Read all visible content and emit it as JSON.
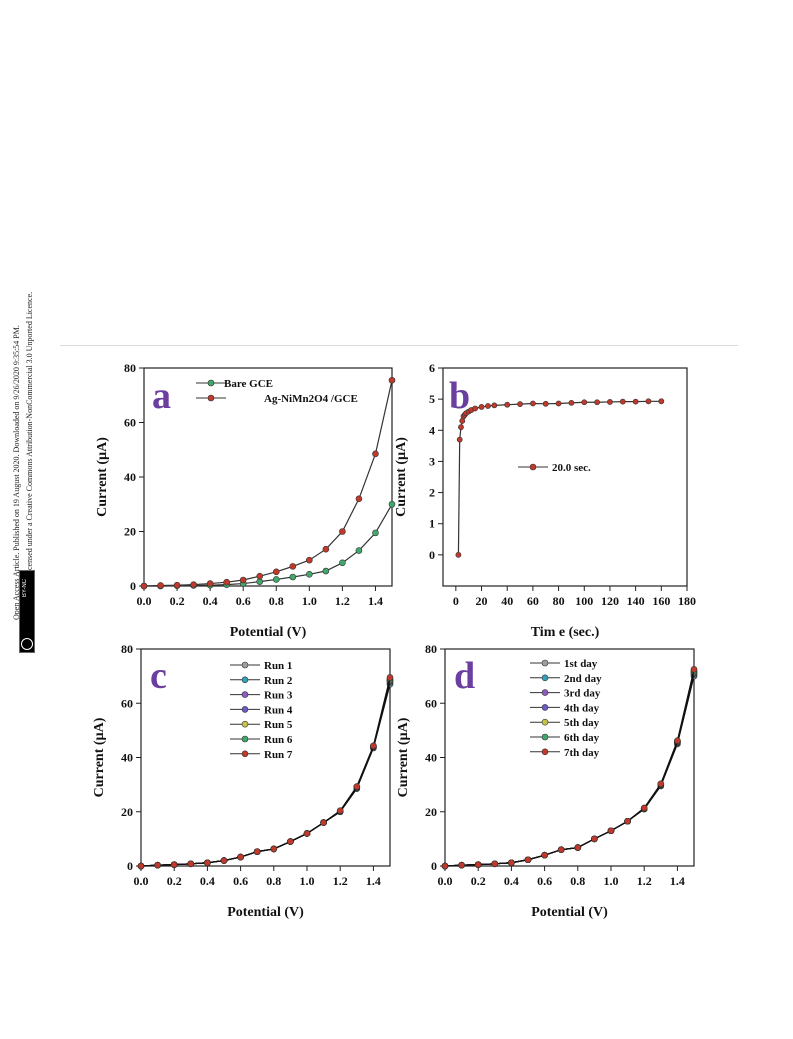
{
  "sidebar": {
    "line1": "Open Access Article. Published on 19 August 2020. Downloaded on 9/26/2020 9:35:54 PM.",
    "line2": "This article is licensed under a Creative Commons Attribution-NonCommercial 3.0 Unported Licence.",
    "badge": "BY-NC"
  },
  "chart_data": [
    {
      "type": "line",
      "panel": "a",
      "xlabel": "Potential (V)",
      "ylabel": "Current (µA)",
      "xlim": [
        0,
        1.5
      ],
      "ylim": [
        0,
        80
      ],
      "xticks": [
        0.0,
        0.2,
        0.4,
        0.6,
        0.8,
        1.0,
        1.2,
        1.4
      ],
      "yticks": [
        0,
        20,
        40,
        60,
        80
      ],
      "legend_position": "top-left",
      "series": [
        {
          "name": "Bare GCE",
          "color": "#3fa86a",
          "x": [
            0.0,
            0.1,
            0.2,
            0.3,
            0.4,
            0.5,
            0.6,
            0.7,
            0.8,
            0.9,
            1.0,
            1.1,
            1.2,
            1.3,
            1.4,
            1.5
          ],
          "y": [
            0,
            0,
            0.1,
            0.2,
            0.3,
            0.5,
            0.9,
            1.6,
            2.4,
            3.3,
            4.3,
            5.5,
            8.5,
            13.0,
            19.5,
            30.0
          ]
        },
        {
          "name": "Ag-NiMn2O4 /GCE",
          "color": "#c0392b",
          "x": [
            0.0,
            0.1,
            0.2,
            0.3,
            0.4,
            0.5,
            0.6,
            0.7,
            0.8,
            0.9,
            1.0,
            1.1,
            1.2,
            1.3,
            1.4,
            1.5
          ],
          "y": [
            0,
            0.2,
            0.3,
            0.5,
            0.9,
            1.4,
            2.2,
            3.6,
            5.2,
            7.2,
            9.5,
            13.5,
            20.0,
            32.0,
            48.5,
            75.5
          ]
        }
      ]
    },
    {
      "type": "line",
      "panel": "b",
      "xlabel": "Tim e (sec.)",
      "ylabel": "Current (µA)",
      "xlim": [
        -10,
        180
      ],
      "ylim": [
        -1,
        6
      ],
      "xticks": [
        0,
        20,
        40,
        60,
        80,
        100,
        120,
        140,
        160,
        180
      ],
      "yticks": [
        0,
        1,
        2,
        3,
        4,
        5,
        6
      ],
      "legend_position": "center",
      "series": [
        {
          "name": "20.0 sec.",
          "color": "#c0392b",
          "x": [
            2,
            3,
            4,
            5,
            6,
            7,
            8,
            10,
            12,
            15,
            20,
            25,
            30,
            40,
            50,
            60,
            70,
            80,
            90,
            100,
            110,
            120,
            130,
            140,
            150,
            160
          ],
          "y": [
            0.0,
            3.7,
            4.1,
            4.3,
            4.45,
            4.5,
            4.55,
            4.6,
            4.65,
            4.7,
            4.75,
            4.78,
            4.8,
            4.82,
            4.84,
            4.86,
            4.85,
            4.86,
            4.88,
            4.9,
            4.9,
            4.91,
            4.92,
            4.92,
            4.93,
            4.93
          ]
        }
      ]
    },
    {
      "type": "line",
      "panel": "c",
      "xlabel": "Potential (V)",
      "ylabel": "Current (µA)",
      "xlim": [
        0,
        1.5
      ],
      "ylim": [
        0,
        80
      ],
      "xticks": [
        0.0,
        0.2,
        0.4,
        0.6,
        0.8,
        1.0,
        1.2,
        1.4
      ],
      "yticks": [
        0,
        20,
        40,
        60,
        80
      ],
      "legend_position": "top-center",
      "x": [
        0.0,
        0.1,
        0.2,
        0.3,
        0.4,
        0.5,
        0.6,
        0.7,
        0.8,
        0.9,
        1.0,
        1.1,
        1.2,
        1.3,
        1.4,
        1.5
      ],
      "series": [
        {
          "name": "Run 1",
          "color": "#9e9e9e",
          "y": [
            0,
            0.3,
            0.5,
            0.8,
            1.2,
            2.0,
            3.3,
            5.3,
            6.3,
            9.0,
            12.0,
            16.0,
            20.0,
            28.5,
            43.5,
            67.0
          ]
        },
        {
          "name": "Run 2",
          "color": "#33a1b5",
          "y": [
            0,
            0.3,
            0.5,
            0.8,
            1.2,
            2.0,
            3.3,
            5.3,
            6.3,
            9.0,
            12.0,
            16.0,
            20.0,
            28.7,
            43.7,
            67.5
          ]
        },
        {
          "name": "Run 3",
          "color": "#8e5cc4",
          "y": [
            0,
            0.3,
            0.5,
            0.8,
            1.2,
            2.0,
            3.3,
            5.3,
            6.3,
            9.0,
            12.0,
            16.0,
            20.2,
            28.9,
            43.9,
            68.0
          ]
        },
        {
          "name": "Run 4",
          "color": "#6a5acd",
          "y": [
            0,
            0.3,
            0.5,
            0.8,
            1.2,
            2.0,
            3.3,
            5.3,
            6.3,
            9.0,
            12.0,
            16.0,
            20.2,
            29.0,
            44.0,
            68.3
          ]
        },
        {
          "name": "Run 5",
          "color": "#c9c24a",
          "y": [
            0,
            0.3,
            0.5,
            0.8,
            1.2,
            2.0,
            3.3,
            5.3,
            6.3,
            9.0,
            12.0,
            16.0,
            20.3,
            29.1,
            44.1,
            68.6
          ]
        },
        {
          "name": "Run 6",
          "color": "#3fa86a",
          "y": [
            0,
            0.3,
            0.5,
            0.8,
            1.2,
            2.0,
            3.3,
            5.3,
            6.3,
            9.0,
            12.0,
            16.0,
            20.3,
            29.2,
            44.2,
            69.0
          ]
        },
        {
          "name": "Run 7",
          "color": "#c0392b",
          "y": [
            0,
            0.3,
            0.5,
            0.8,
            1.2,
            2.0,
            3.3,
            5.3,
            6.3,
            9.0,
            12.0,
            16.0,
            20.4,
            29.3,
            44.3,
            69.5
          ]
        }
      ]
    },
    {
      "type": "line",
      "panel": "d",
      "xlabel": "Potential (V)",
      "ylabel": "Current (µA)",
      "xlim": [
        0,
        1.5
      ],
      "ylim": [
        0,
        80
      ],
      "xticks": [
        0.0,
        0.2,
        0.4,
        0.6,
        0.8,
        1.0,
        1.2,
        1.4
      ],
      "yticks": [
        0,
        20,
        40,
        60,
        80
      ],
      "legend_position": "top-center",
      "x": [
        0.0,
        0.1,
        0.2,
        0.3,
        0.4,
        0.5,
        0.6,
        0.7,
        0.8,
        0.9,
        1.0,
        1.1,
        1.2,
        1.3,
        1.4,
        1.5
      ],
      "series": [
        {
          "name": "1st day",
          "color": "#9e9e9e",
          "y": [
            0,
            0.3,
            0.5,
            0.8,
            1.2,
            2.3,
            4.0,
            6.0,
            6.8,
            10.0,
            13.0,
            16.5,
            21.0,
            29.5,
            45.0,
            70.0
          ]
        },
        {
          "name": "2nd day",
          "color": "#33a1b5",
          "y": [
            0,
            0.3,
            0.5,
            0.8,
            1.2,
            2.3,
            4.0,
            6.0,
            6.8,
            10.0,
            13.0,
            16.5,
            21.0,
            29.7,
            45.3,
            70.5
          ]
        },
        {
          "name": "3rd day",
          "color": "#8e5cc4",
          "y": [
            0,
            0.3,
            0.5,
            0.8,
            1.2,
            2.3,
            4.0,
            6.0,
            6.8,
            10.0,
            13.0,
            16.5,
            21.2,
            29.9,
            45.5,
            71.0
          ]
        },
        {
          "name": "4th day",
          "color": "#6a5acd",
          "y": [
            0,
            0.3,
            0.5,
            0.8,
            1.2,
            2.3,
            4.0,
            6.0,
            6.8,
            10.0,
            13.0,
            16.5,
            21.2,
            30.0,
            45.7,
            71.3
          ]
        },
        {
          "name": "5th day",
          "color": "#c9c24a",
          "y": [
            0,
            0.3,
            0.5,
            0.8,
            1.2,
            2.3,
            4.0,
            6.0,
            6.8,
            10.0,
            13.0,
            16.5,
            21.3,
            30.1,
            45.8,
            71.6
          ]
        },
        {
          "name": "6th day",
          "color": "#3fa86a",
          "y": [
            0,
            0.3,
            0.5,
            0.8,
            1.2,
            2.3,
            4.0,
            6.0,
            6.8,
            10.0,
            13.0,
            16.5,
            21.3,
            30.2,
            46.0,
            72.0
          ]
        },
        {
          "name": "7th day",
          "color": "#c0392b",
          "y": [
            0,
            0.3,
            0.5,
            0.8,
            1.2,
            2.3,
            4.0,
            6.0,
            6.8,
            10.0,
            13.0,
            16.5,
            21.4,
            30.3,
            46.2,
            72.5
          ]
        }
      ]
    }
  ]
}
